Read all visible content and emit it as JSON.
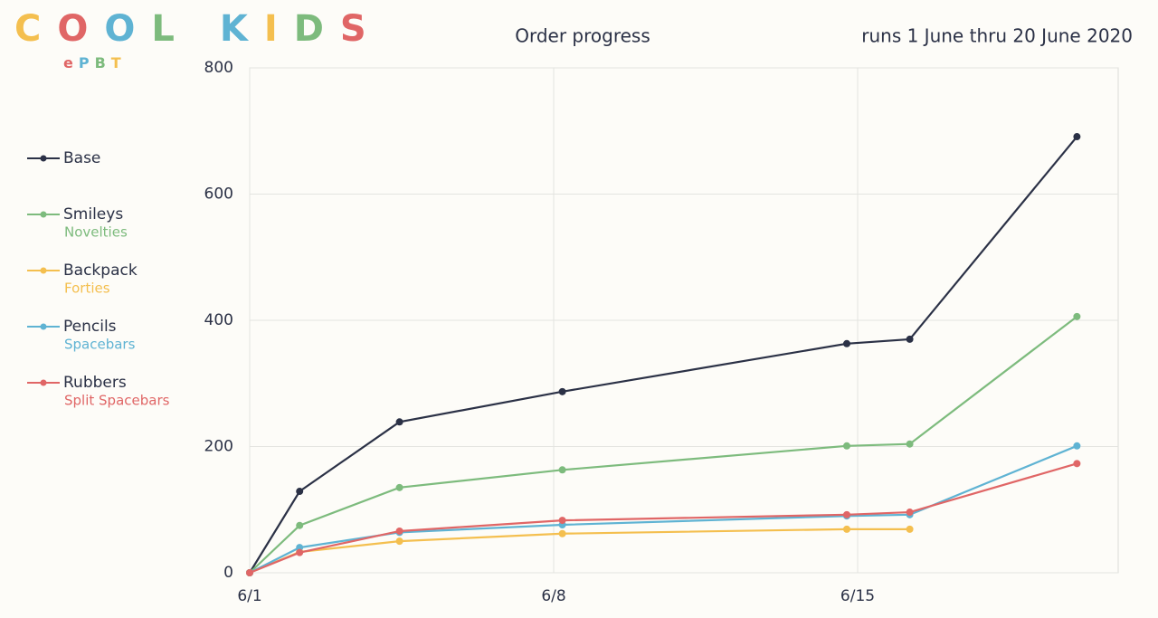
{
  "logo": {
    "text": "COOL KIDS",
    "colors": [
      "#f4bf4f",
      "#e06666",
      "#5fb3d3",
      "#7dbb7d",
      "#5fb3d3",
      "#f4bf4f",
      "#7dbb7d",
      "#e06666"
    ],
    "subtext": "ePBT",
    "subcolors": [
      "#e06666",
      "#5fb3d3",
      "#7dbb7d",
      "#f4bf4f"
    ]
  },
  "chart_data": {
    "type": "line",
    "title": "Order progress",
    "subtitle": "runs 1 June thru 20 June 2020",
    "x": [
      0,
      1.15,
      3.45,
      7.2,
      13.75,
      15.2,
      19.05
    ],
    "xlim": [
      0,
      20
    ],
    "xticks": [
      {
        "value": 0,
        "label": "6/1"
      },
      {
        "value": 7,
        "label": "6/8"
      },
      {
        "value": 14,
        "label": "6/15"
      }
    ],
    "ylim": [
      0,
      800
    ],
    "yticks": [
      0,
      200,
      400,
      600,
      800
    ],
    "grid": true,
    "series": [
      {
        "name": "Base",
        "color": "#2b3146",
        "values": [
          0,
          129,
          239,
          287,
          363,
          370,
          691
        ]
      },
      {
        "name": "Smileys",
        "subtitle": "Novelties",
        "color": "#7dbb7d",
        "values": [
          0,
          75,
          135,
          163,
          201,
          204,
          406
        ]
      },
      {
        "name": "Backpack",
        "subtitle": "Forties",
        "color": "#f4bf4f",
        "values": [
          0,
          33,
          50,
          62,
          69,
          69,
          null
        ]
      },
      {
        "name": "Pencils",
        "subtitle": "Spacebars",
        "color": "#5fb3d3",
        "values": [
          0,
          40,
          64,
          76,
          90,
          92,
          201
        ]
      },
      {
        "name": "Rubbers",
        "subtitle": "Split Spacebars",
        "color": "#e06666",
        "values": [
          0,
          32,
          66,
          83,
          92,
          96,
          173
        ]
      }
    ]
  }
}
